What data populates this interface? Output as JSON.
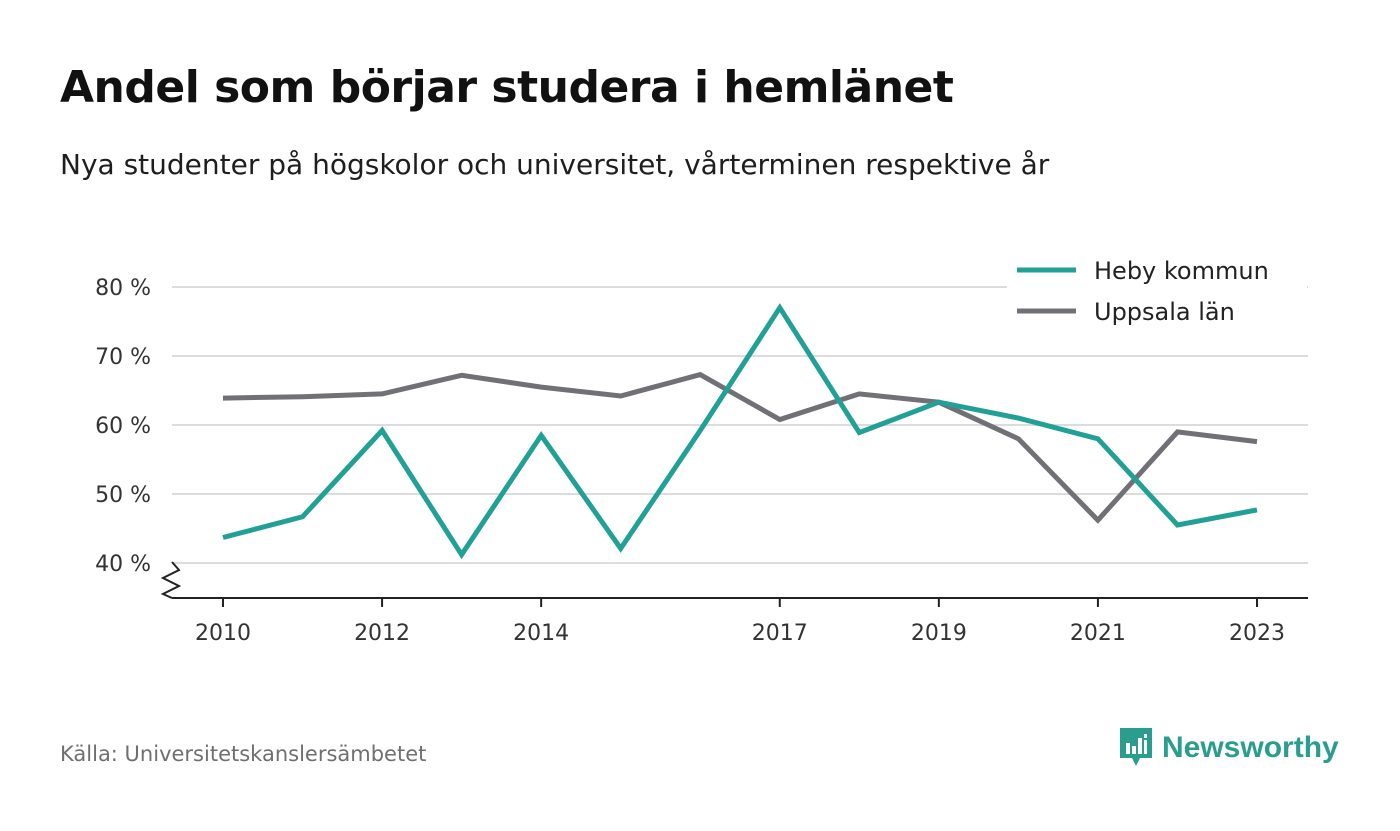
{
  "title": "Andel som börjar studera i hemlänet",
  "subtitle": "Nya studenter på högskolor och universitet, vårterminen respektive år",
  "source": "Källa: Universitetskanslersämbetet",
  "brand": {
    "name": "Newsworthy",
    "icon": "newsworthy-logo-icon",
    "color": "#2a9d8f"
  },
  "chart_data": {
    "type": "line",
    "title": "Andel som börjar studera i hemlänet",
    "subtitle": "Nya studenter på högskolor och universitet, vårterminen respektive år",
    "x": [
      2010,
      2011,
      2012,
      2013,
      2014,
      2015,
      2016,
      2017,
      2018,
      2019,
      2020,
      2021,
      2022,
      2023
    ],
    "x_tick_values": [
      2010,
      2012,
      2014,
      2017,
      2019,
      2021,
      2023
    ],
    "x_tick_labels": [
      "2010",
      "2012",
      "2014",
      "2017",
      "2019",
      "2021",
      "2023"
    ],
    "y_tick_values": [
      40,
      50,
      60,
      70,
      80
    ],
    "y_tick_labels": [
      "40 %",
      "50 %",
      "60 %",
      "70 %",
      "80 %"
    ],
    "ylim": [
      35,
      82
    ],
    "y_axis_break": true,
    "grid": "horizontal",
    "legend_position": "top-right",
    "series": [
      {
        "name": "Heby kommun",
        "color": "#21a196",
        "values": [
          43.7,
          46.7,
          59.2,
          41.2,
          58.5,
          42.1,
          59.2,
          77.0,
          58.9,
          63.3,
          61.0,
          58.0,
          45.5,
          47.7
        ]
      },
      {
        "name": "Uppsala län",
        "color": "#717076",
        "values": [
          63.9,
          64.1,
          64.5,
          67.2,
          65.5,
          64.2,
          67.3,
          60.8,
          64.5,
          63.3,
          58.0,
          46.2,
          59.0,
          57.6
        ]
      }
    ]
  }
}
